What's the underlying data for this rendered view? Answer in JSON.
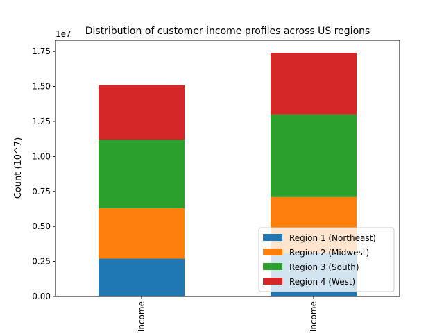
{
  "chart_data": {
    "type": "bar",
    "stacked": true,
    "title": "Distribution of customer income profiles across US regions",
    "ylabel": "Count (10^7)",
    "offset_label": "1e7",
    "categories": [
      "Income",
      "Income"
    ],
    "ylim": [
      0,
      1.83
    ],
    "yticks": [
      "0.00",
      "0.25",
      "0.50",
      "0.75",
      "1.00",
      "1.25",
      "1.50",
      "1.75"
    ],
    "series": [
      {
        "name": "Region 1 (Northeast)",
        "color": "#1f77b4",
        "values": [
          0.27,
          0.31
        ]
      },
      {
        "name": "Region 2 (Midwest)",
        "color": "#ff7f0e",
        "values": [
          0.36,
          0.4
        ]
      },
      {
        "name": "Region 3 (South)",
        "color": "#2ca02c",
        "values": [
          0.49,
          0.59
        ]
      },
      {
        "name": "Region 4 (West)",
        "color": "#d62728",
        "values": [
          0.39,
          0.44
        ]
      }
    ],
    "legend_position": "lower-right",
    "grid": false
  }
}
